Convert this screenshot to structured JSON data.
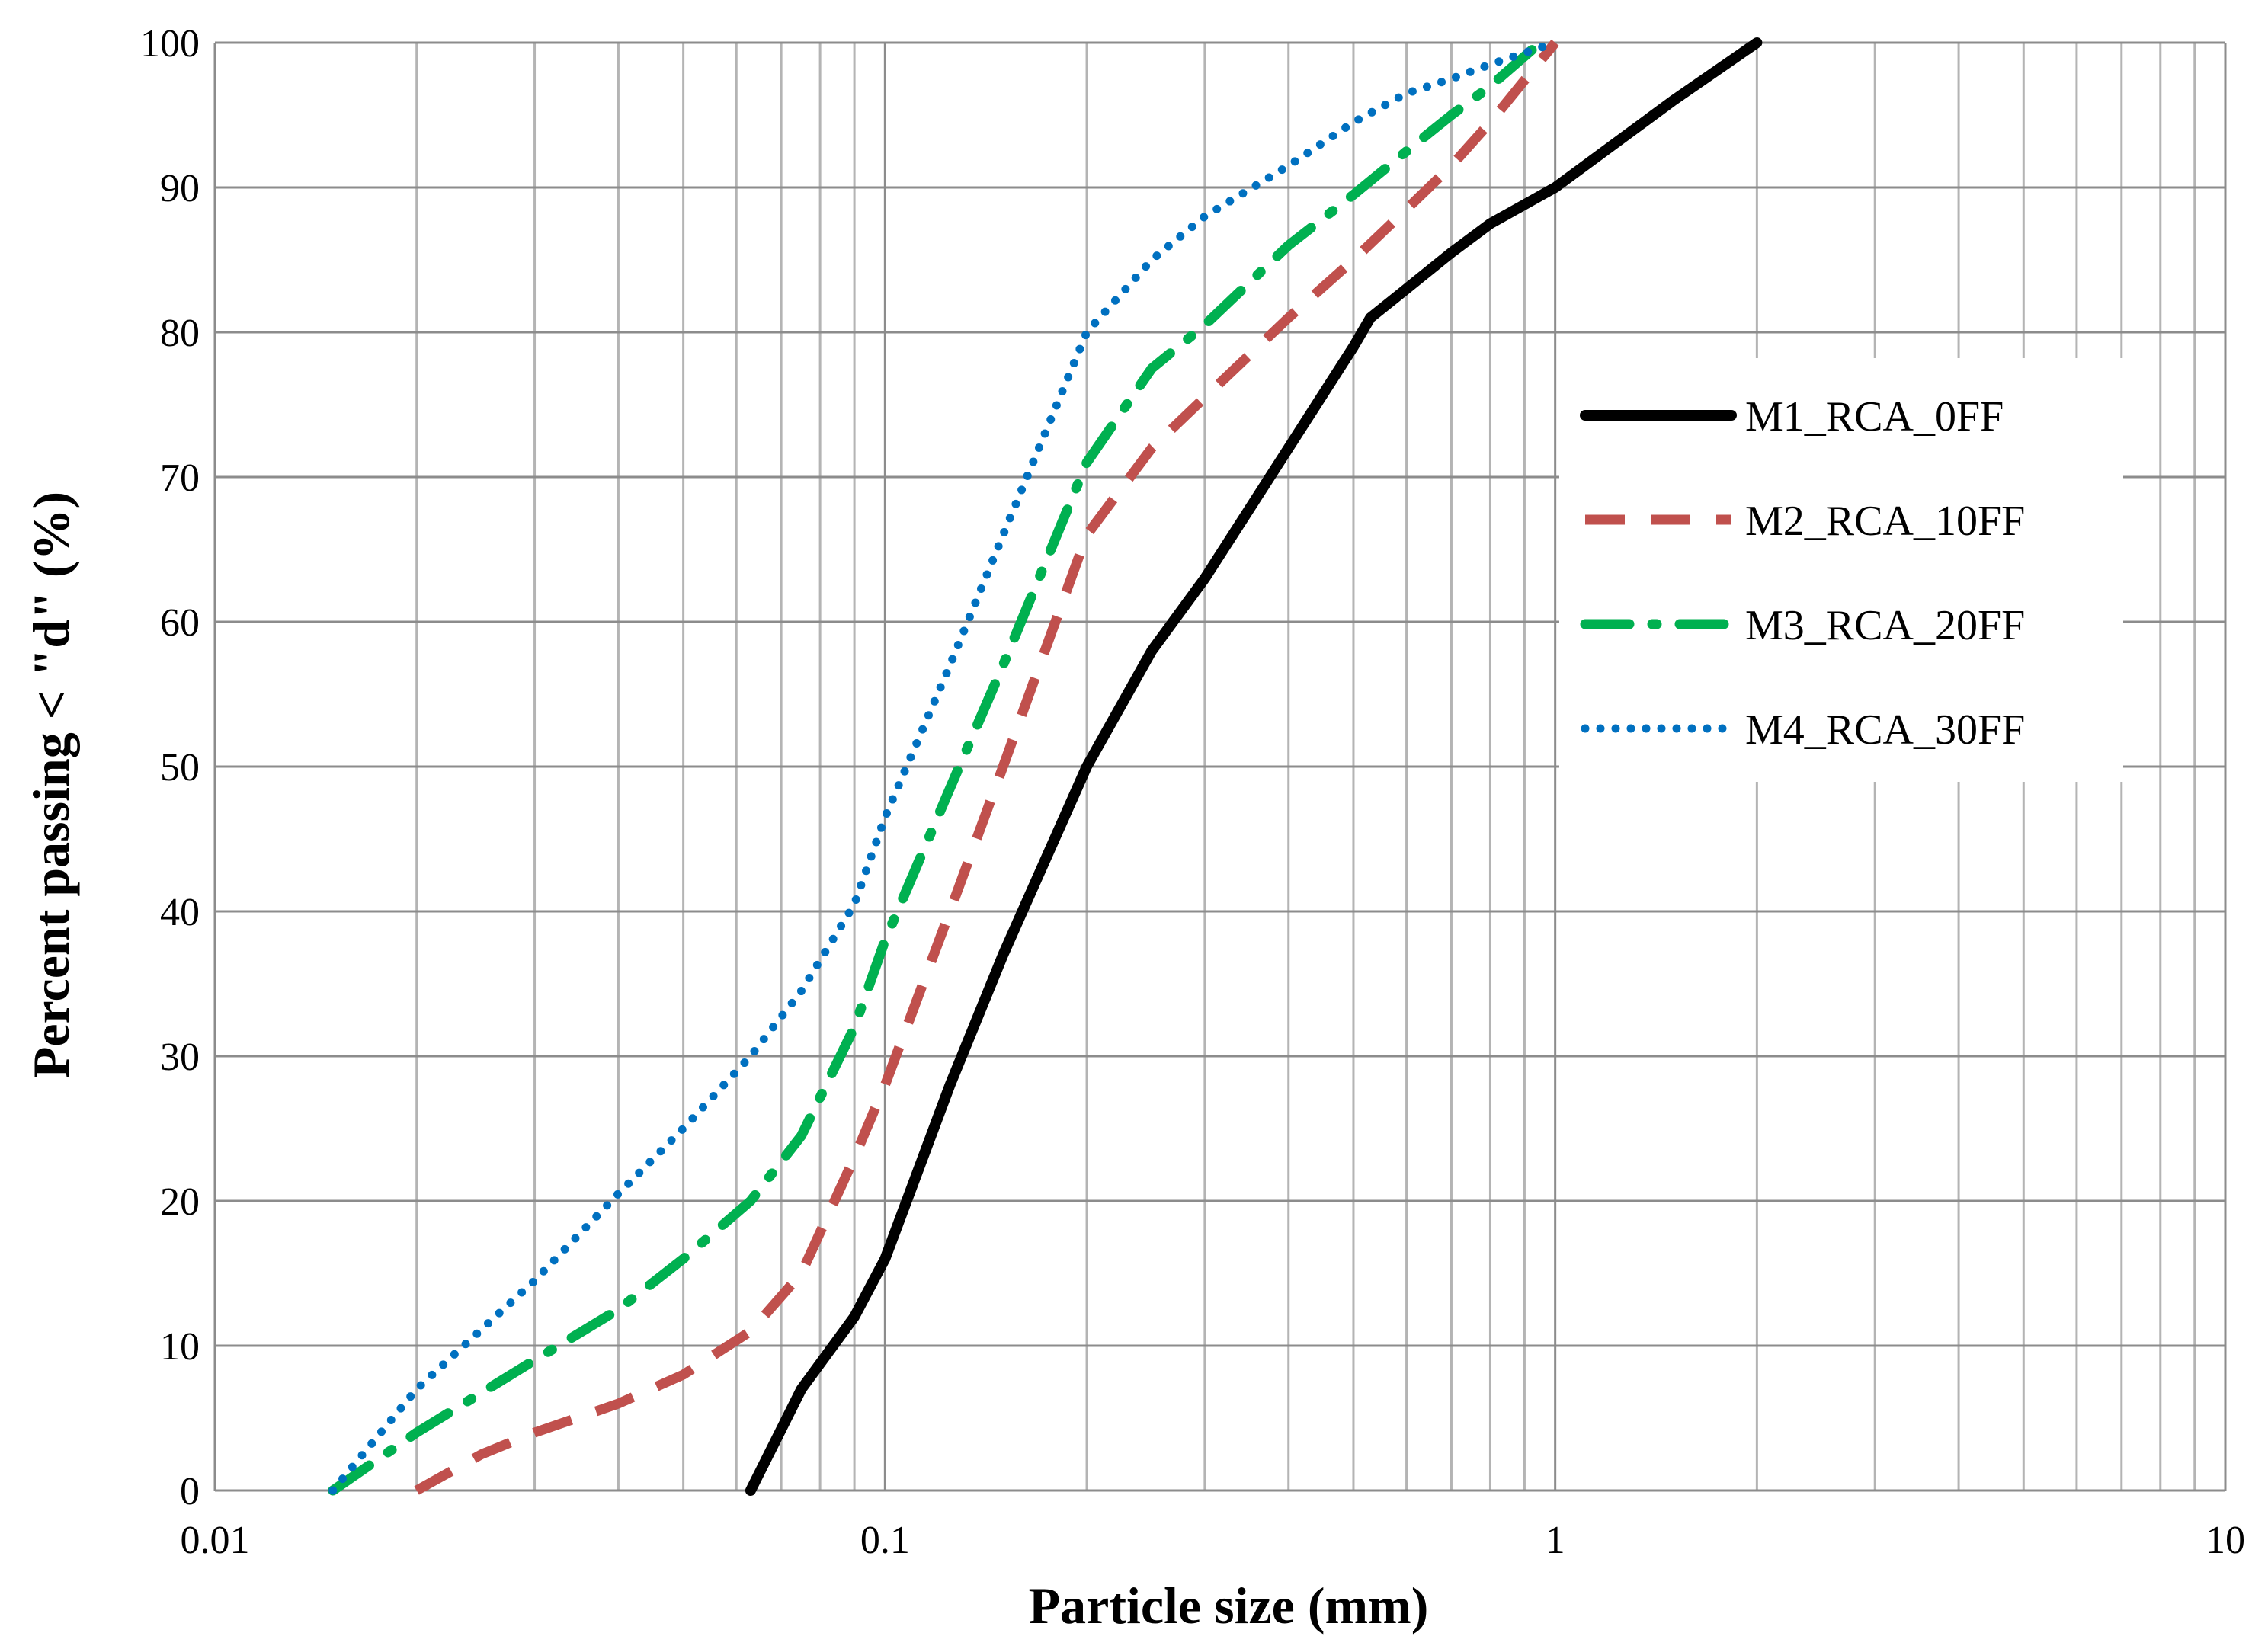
{
  "chart_data": {
    "type": "line",
    "title": "",
    "xlabel": "Particle size (mm)",
    "ylabel": "Percent passing < \"d\" (%)",
    "xscale": "log",
    "xlim": [
      0.01,
      10
    ],
    "ylim": [
      0,
      100
    ],
    "x_ticks": [
      {
        "value": 0.01,
        "label": "0.01"
      },
      {
        "value": 0.1,
        "label": "0.1"
      },
      {
        "value": 1,
        "label": "1"
      },
      {
        "value": 10,
        "label": "10"
      }
    ],
    "y_ticks": [
      {
        "value": 0,
        "label": "0"
      },
      {
        "value": 10,
        "label": "10"
      },
      {
        "value": 20,
        "label": "20"
      },
      {
        "value": 30,
        "label": "30"
      },
      {
        "value": 40,
        "label": "40"
      },
      {
        "value": 50,
        "label": "50"
      },
      {
        "value": 60,
        "label": "60"
      },
      {
        "value": 70,
        "label": "70"
      },
      {
        "value": 80,
        "label": "80"
      },
      {
        "value": 90,
        "label": "90"
      },
      {
        "value": 100,
        "label": "100"
      }
    ],
    "grid": true,
    "legend_position": "right",
    "series": [
      {
        "name": "M1_RCA_0FF",
        "color": "#000000",
        "style": "solid",
        "x": [
          0.063,
          0.075,
          0.09,
          0.1,
          0.125,
          0.15,
          0.2,
          0.25,
          0.3,
          0.4,
          0.5,
          0.53,
          0.6,
          0.7,
          0.8,
          1.0,
          1.5,
          2.0
        ],
        "y": [
          0,
          7,
          12,
          16,
          28,
          37,
          50,
          58,
          63,
          72,
          79,
          81,
          83,
          85.5,
          87.5,
          90,
          96,
          100
        ]
      },
      {
        "name": "M2_RCA_10FF",
        "color": "#c0504d",
        "style": "dashed",
        "x": [
          0.02,
          0.025,
          0.03,
          0.04,
          0.05,
          0.063,
          0.075,
          0.09,
          0.1,
          0.125,
          0.15,
          0.2,
          0.25,
          0.3,
          0.4,
          0.5,
          0.6,
          0.7,
          0.8,
          1.0
        ],
        "y": [
          0,
          2.5,
          4,
          6,
          8,
          11,
          15,
          23,
          28,
          40,
          50,
          66,
          72,
          75.5,
          81,
          85,
          88.5,
          91.5,
          94.5,
          100
        ]
      },
      {
        "name": "M3_RCA_20FF",
        "color": "#00b050",
        "style": "dashdot",
        "x": [
          0.015,
          0.02,
          0.03,
          0.04,
          0.05,
          0.063,
          0.075,
          0.09,
          0.1,
          0.125,
          0.15,
          0.2,
          0.25,
          0.3,
          0.4,
          0.5,
          0.6,
          0.7,
          0.8,
          0.95
        ],
        "y": [
          0,
          4,
          9,
          12.5,
          16,
          20,
          24.5,
          32,
          38,
          48.5,
          57,
          71,
          77.5,
          80.5,
          86,
          89.5,
          92.5,
          95,
          97,
          100
        ]
      },
      {
        "name": "M4_RCA_30FF",
        "color": "#0070c0",
        "style": "dotted",
        "x": [
          0.015,
          0.02,
          0.03,
          0.04,
          0.05,
          0.063,
          0.075,
          0.09,
          0.1,
          0.125,
          0.15,
          0.2,
          0.25,
          0.3,
          0.4,
          0.5,
          0.6,
          0.7,
          0.8,
          1.0
        ],
        "y": [
          0,
          7,
          14.5,
          20.5,
          25,
          30,
          34.5,
          40.5,
          46.5,
          57,
          66,
          80,
          85,
          88,
          91.5,
          94.5,
          96.5,
          97.5,
          98.5,
          100
        ]
      }
    ]
  }
}
